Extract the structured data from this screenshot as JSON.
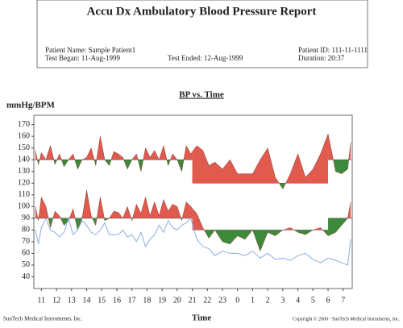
{
  "header": {
    "title": "Accu Dx Ambulatory Blood Pressure Report",
    "patient_name": "Patient Name:  Sample Patient1",
    "test_began": "Test Began:  11-Aug-1999",
    "test_ended": "Test Ended:  12-Aug-1999",
    "patient_id": "Patient ID:  111-11-1111",
    "duration": "Duration:  20:37"
  },
  "chart_data": {
    "type": "bp",
    "title": "BP vs. Time",
    "ylabel": "mmHg/BPM",
    "xlabel": "Time",
    "xlim": [
      -0.5,
      20.6
    ],
    "ylim": [
      30,
      178
    ],
    "yticks": [
      40,
      50,
      60,
      70,
      80,
      90,
      100,
      110,
      120,
      130,
      140,
      150,
      160,
      170
    ],
    "xticks": [
      {
        "value": 0,
        "label": "11"
      },
      {
        "value": 1,
        "label": "12"
      },
      {
        "value": 2,
        "label": "13"
      },
      {
        "value": 3,
        "label": "14"
      },
      {
        "value": 4,
        "label": "15"
      },
      {
        "value": 5,
        "label": "16"
      },
      {
        "value": 6,
        "label": "17"
      },
      {
        "value": 7,
        "label": "18"
      },
      {
        "value": 8,
        "label": "19"
      },
      {
        "value": 9,
        "label": "20"
      },
      {
        "value": 10,
        "label": "21"
      },
      {
        "value": 11,
        "label": "22"
      },
      {
        "value": 12,
        "label": "23"
      },
      {
        "value": 13,
        "label": "0"
      },
      {
        "value": 14,
        "label": "1"
      },
      {
        "value": 15,
        "label": "2"
      },
      {
        "value": 16,
        "label": "3"
      },
      {
        "value": 17,
        "label": "4"
      },
      {
        "value": 18,
        "label": "5"
      },
      {
        "value": 19,
        "label": "6"
      },
      {
        "value": 20,
        "label": "7"
      }
    ],
    "limits": [
      {
        "xlim": [
          -0.5,
          10
        ],
        "systolic": 140,
        "diastolic": 90
      },
      {
        "xlim": [
          10,
          19
        ],
        "systolic": 120,
        "diastolic": 80
      },
      {
        "xlim": [
          19,
          20.6
        ],
        "systolic": 140,
        "diastolic": 90
      }
    ],
    "color_above": "#e05a4e",
    "color_below": "#3d8a3a",
    "x": [
      -0.4,
      -0.2,
      0,
      0.3,
      0.6,
      0.9,
      1.2,
      1.5,
      1.8,
      2.1,
      2.4,
      2.7,
      3,
      3.3,
      3.6,
      3.9,
      4.2,
      4.5,
      4.8,
      5.1,
      5.4,
      5.7,
      6,
      6.3,
      6.6,
      6.9,
      7.2,
      7.5,
      7.8,
      8.1,
      8.4,
      8.7,
      9,
      9.3,
      9.6,
      9.9,
      10.3,
      10.7,
      11.1,
      11.5,
      12,
      12.5,
      13,
      13.5,
      14,
      14.5,
      15,
      15.5,
      16,
      16.5,
      17,
      17.5,
      18,
      18.5,
      19,
      19.5,
      19.9,
      20.3,
      20.5
    ],
    "series": [
      {
        "fill": true,
        "values": [
          148,
          136,
          146,
          140,
          152,
          136,
          145,
          134,
          140,
          145,
          132,
          140,
          142,
          150,
          135,
          160,
          140,
          135,
          147,
          145,
          142,
          132,
          140,
          145,
          130,
          150,
          142,
          148,
          140,
          152,
          135,
          145,
          140,
          130,
          152,
          145,
          152,
          148,
          135,
          138,
          132,
          140,
          128,
          128,
          128,
          140,
          150,
          125,
          115,
          128,
          145,
          125,
          132,
          145,
          162,
          130,
          128,
          132,
          155
        ],
        "limit": "systolic"
      },
      {
        "fill": true,
        "values": [
          100,
          88,
          108,
          100,
          82,
          96,
          92,
          84,
          88,
          98,
          80,
          90,
          114,
          92,
          84,
          108,
          88,
          90,
          96,
          95,
          90,
          100,
          88,
          102,
          94,
          108,
          92,
          104,
          92,
          106,
          96,
          102,
          100,
          88,
          104,
          100,
          94,
          82,
          73,
          80,
          70,
          68,
          75,
          72,
          80,
          62,
          78,
          75,
          80,
          82,
          78,
          76,
          80,
          82,
          75,
          78,
          84,
          90,
          104
        ],
        "limit": "diastolic"
      },
      {
        "fill": false,
        "color": "#8aaee0",
        "values": [
          80,
          68,
          82,
          90,
          80,
          78,
          74,
          78,
          90,
          76,
          80,
          88,
          84,
          78,
          76,
          80,
          86,
          76,
          76,
          76,
          80,
          74,
          76,
          70,
          78,
          66,
          72,
          76,
          84,
          78,
          88,
          82,
          80,
          84,
          86,
          90,
          72,
          66,
          64,
          58,
          62,
          60,
          60,
          58,
          62,
          56,
          60,
          55,
          56,
          54,
          58,
          60,
          55,
          52,
          56,
          54,
          52,
          50,
          72
        ]
      }
    ]
  },
  "footer": {
    "left": "SunTech Medical Instruments, Inc.",
    "right": "Copyright © 2000 - SunTech Medical Instruments, Inc."
  }
}
